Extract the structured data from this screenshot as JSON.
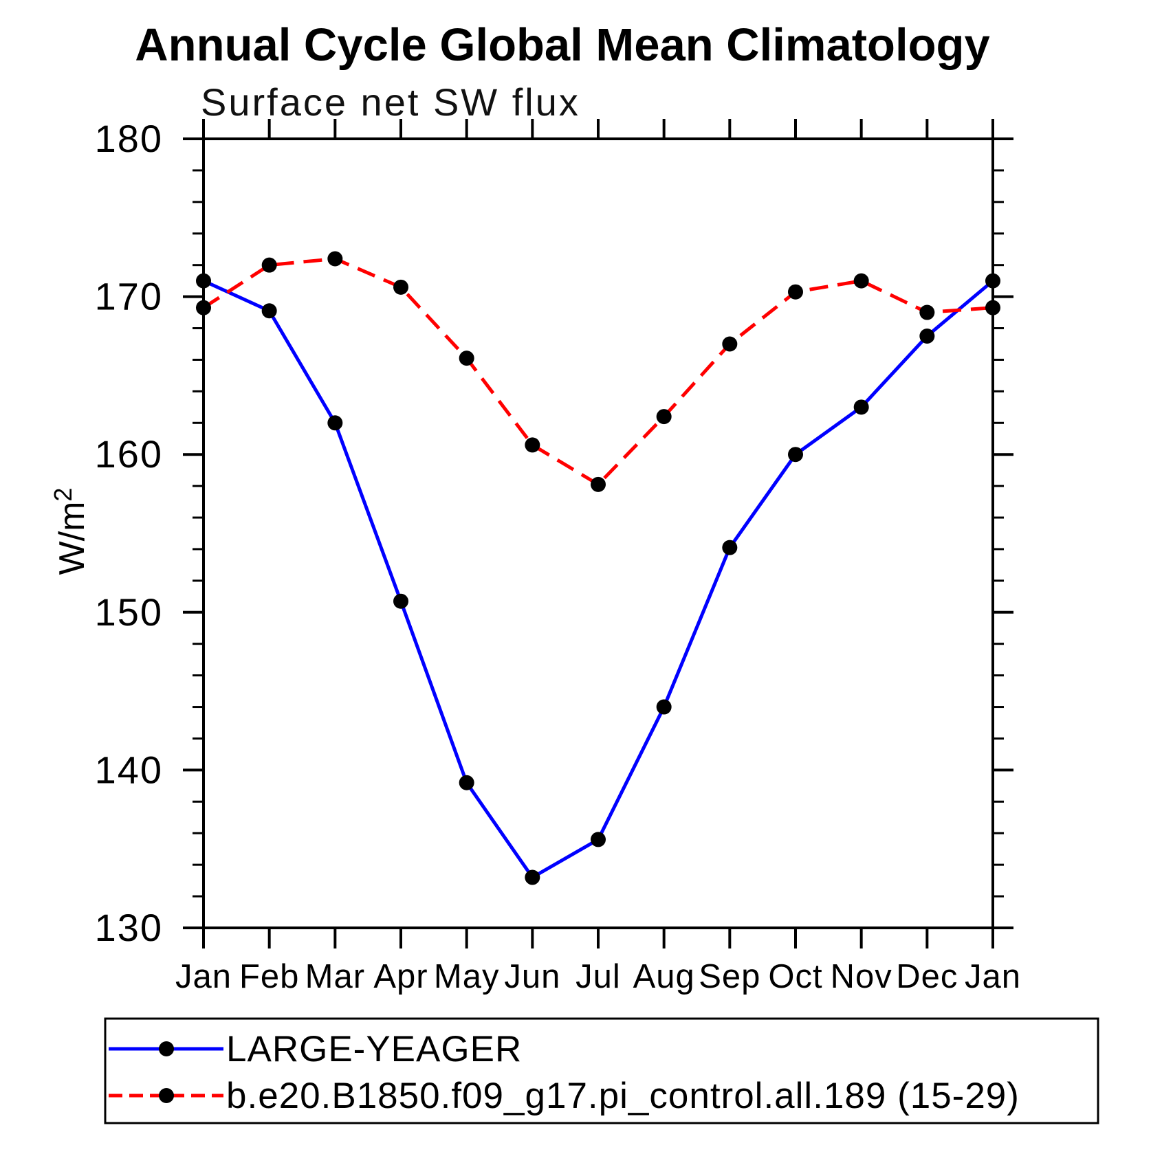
{
  "chart_data": {
    "type": "line",
    "title": "Annual Cycle Global Mean Climatology",
    "subtitle": "Surface net SW flux",
    "ylabel": "W/m²",
    "ylabel_base": "W/m",
    "ylabel_sup": "2",
    "categories": [
      "Jan",
      "Feb",
      "Mar",
      "Apr",
      "May",
      "Jun",
      "Jul",
      "Aug",
      "Sep",
      "Oct",
      "Nov",
      "Dec",
      "Jan"
    ],
    "ylim": [
      130,
      180
    ],
    "yticks_major": [
      130,
      140,
      150,
      160,
      170,
      180
    ],
    "ytick_minor_step": 2,
    "grid": false,
    "legend_position": "bottom-left-box",
    "marker_color": "#000000",
    "series": [
      {
        "name": "LARGE-YEAGER",
        "color": "#0000ff",
        "style": "solid",
        "values": [
          171.0,
          169.1,
          162.0,
          150.7,
          139.2,
          133.2,
          135.6,
          144.0,
          154.1,
          160.0,
          163.0,
          167.5,
          171.0
        ]
      },
      {
        "name": "b.e20.B1850.f09_g17.pi_control.all.189 (15-29)",
        "color": "#ff0000",
        "style": "dashed",
        "values": [
          169.3,
          172.0,
          172.4,
          170.6,
          166.1,
          160.6,
          158.1,
          162.4,
          167.0,
          170.3,
          171.0,
          169.0,
          169.3
        ]
      }
    ]
  }
}
